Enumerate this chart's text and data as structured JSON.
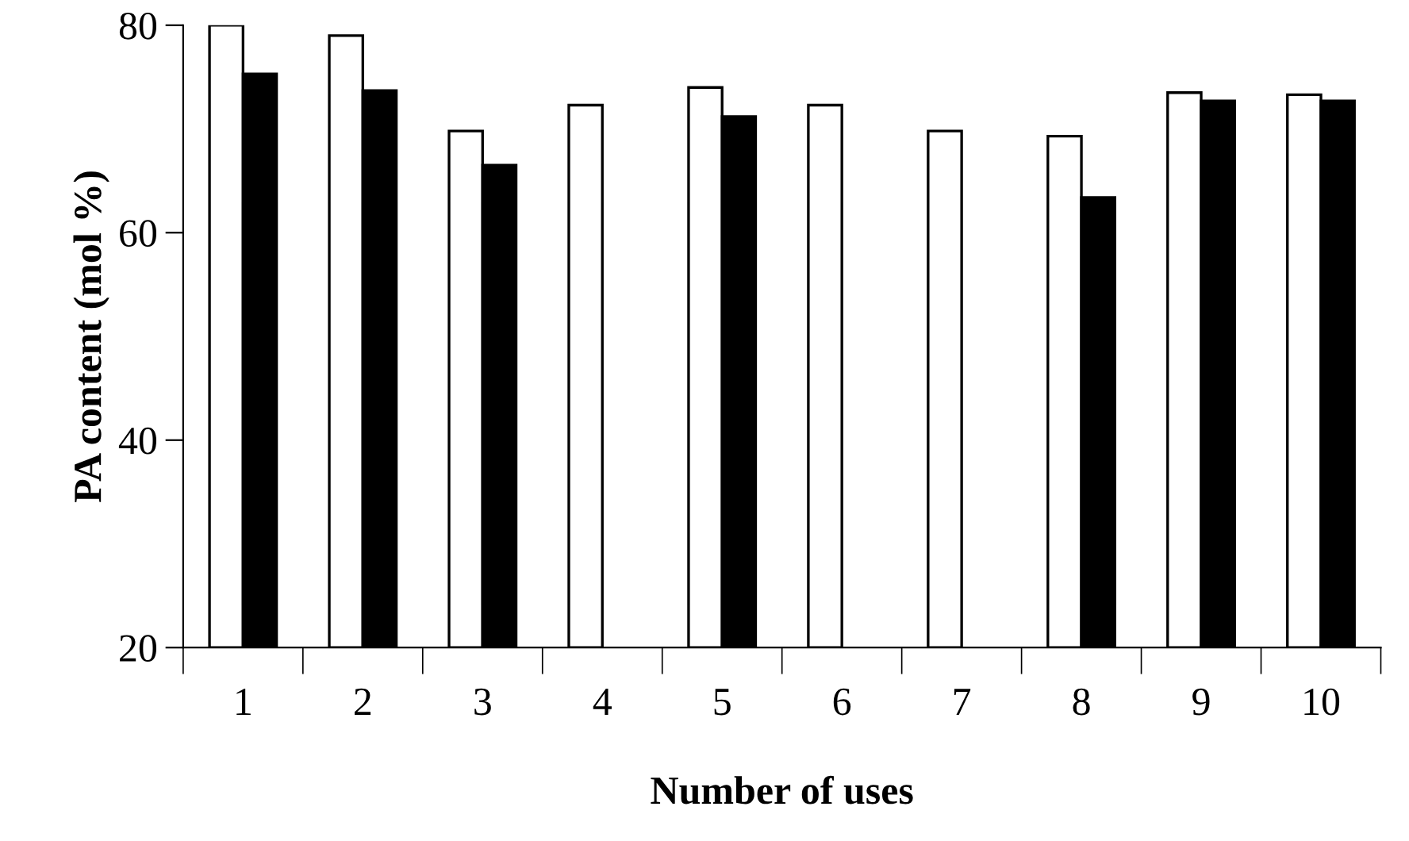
{
  "chart_data": {
    "type": "bar",
    "xlabel": "Number of uses",
    "ylabel": "PA content (mol %)",
    "categories": [
      "1",
      "2",
      "3",
      "4",
      "5",
      "6",
      "7",
      "8",
      "9",
      "10"
    ],
    "series": [
      {
        "color": "#ffffff",
        "values": [
          80,
          79,
          69.8,
          72.3,
          74,
          72.3,
          69.8,
          69.3,
          73.5,
          73.3
        ]
      },
      {
        "color": "#000000",
        "values": [
          75.3,
          73.7,
          66.5,
          null,
          71.2,
          null,
          null,
          63.4,
          72.7,
          72.7
        ]
      }
    ],
    "ylim": [
      20,
      80
    ],
    "yticks": [
      20,
      40,
      60,
      80
    ],
    "grid": false,
    "legend": false
  }
}
